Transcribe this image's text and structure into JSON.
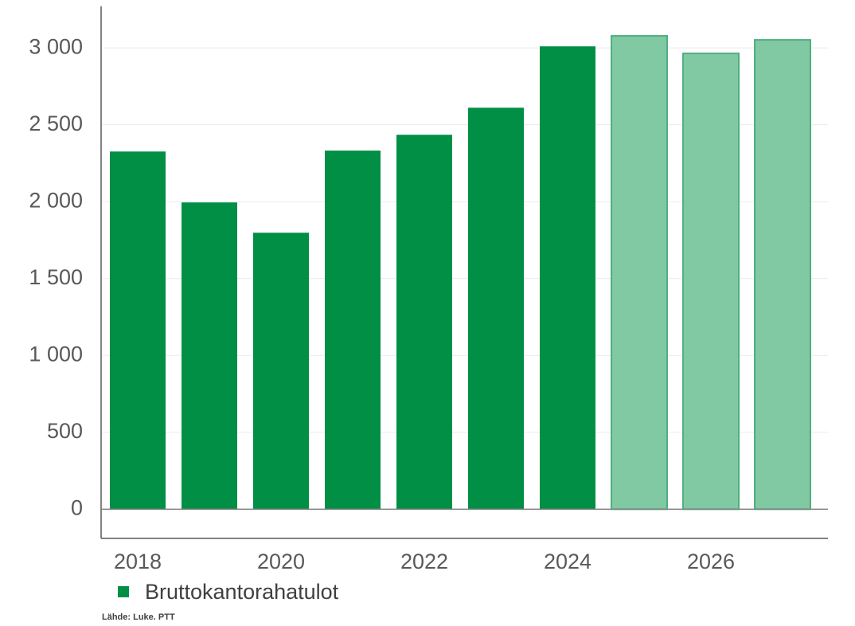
{
  "chart_data": {
    "type": "bar",
    "categories": [
      "2018",
      null,
      "2020",
      null,
      "2022",
      null,
      "2024",
      null,
      "2026",
      null
    ],
    "series": [
      {
        "name": "Bruttokantorahatulot",
        "color": "#008f45",
        "values": [
          2326,
          1995,
          1798,
          2332,
          2435,
          2611,
          3010,
          3078,
          2964,
          3052
        ],
        "colors": [
          "#008f45",
          "#008f45",
          "#008f45",
          "#008f45",
          "#008f45",
          "#008f45",
          "#008f45",
          "#80c9a2",
          "#80c9a2",
          "#80c9a2"
        ]
      }
    ],
    "ylim": [
      -190,
      3270
    ],
    "yticks": [
      0,
      500,
      {
        "value": 1000,
        "label": "1 000"
      },
      {
        "value": 1500,
        "label": "1 500"
      },
      {
        "value": 2000,
        "label": "2 000"
      },
      {
        "value": 2500,
        "label": "2 500"
      },
      {
        "value": 3000,
        "label": "3 000"
      }
    ],
    "grid": true,
    "source": "Lähde: Luke. PTT"
  }
}
